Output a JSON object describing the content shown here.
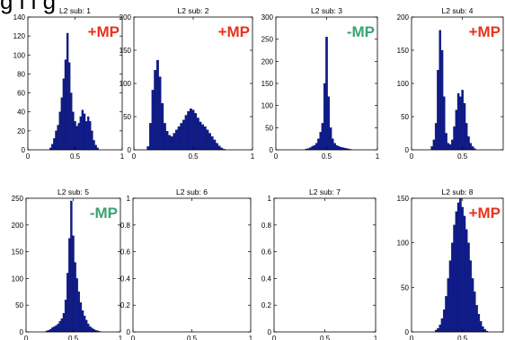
{
  "top_caption": "g   l     l                    g",
  "chart_data": [
    {
      "type": "bar",
      "title": "L2 sub: 1",
      "annotation": "+MP",
      "annotation_color": "#e8331c",
      "xlim": [
        0,
        1
      ],
      "ylim": [
        0,
        140
      ],
      "xticks": [
        0,
        0.5,
        1
      ],
      "yticks": [
        0,
        20,
        40,
        60,
        80,
        100,
        120,
        140
      ],
      "bin_width": 0.02,
      "x": [
        0.24,
        0.26,
        0.28,
        0.3,
        0.32,
        0.34,
        0.36,
        0.38,
        0.4,
        0.42,
        0.44,
        0.46,
        0.48,
        0.5,
        0.52,
        0.54,
        0.56,
        0.58,
        0.6,
        0.62,
        0.64,
        0.66,
        0.68,
        0.7,
        0.72,
        0.74
      ],
      "values": [
        2,
        6,
        12,
        20,
        26,
        40,
        55,
        75,
        95,
        123,
        92,
        60,
        40,
        30,
        25,
        28,
        35,
        42,
        38,
        30,
        35,
        30,
        20,
        10,
        5,
        2
      ]
    },
    {
      "type": "bar",
      "title": "L2 sub: 2",
      "annotation": "+MP",
      "annotation_color": "#e8331c",
      "xlim": [
        0,
        1
      ],
      "ylim": [
        0,
        200
      ],
      "xticks": [
        0,
        0.5,
        1
      ],
      "yticks": [
        0,
        50,
        100,
        150,
        200
      ],
      "bin_width": 0.02,
      "x": [
        0.12,
        0.14,
        0.16,
        0.18,
        0.2,
        0.22,
        0.24,
        0.26,
        0.28,
        0.3,
        0.32,
        0.34,
        0.36,
        0.38,
        0.4,
        0.42,
        0.44,
        0.46,
        0.48,
        0.5,
        0.52,
        0.54,
        0.56,
        0.58,
        0.6,
        0.62,
        0.64,
        0.66,
        0.68,
        0.7,
        0.72,
        0.74,
        0.76
      ],
      "values": [
        5,
        40,
        90,
        120,
        135,
        110,
        70,
        40,
        28,
        22,
        20,
        25,
        30,
        35,
        40,
        45,
        52,
        58,
        62,
        60,
        55,
        48,
        42,
        38,
        35,
        30,
        25,
        20,
        15,
        10,
        6,
        3,
        1
      ]
    },
    {
      "type": "bar",
      "title": "L2 sub: 3",
      "annotation": "-MP",
      "annotation_color": "#3aa374",
      "xlim": [
        0,
        1
      ],
      "ylim": [
        0,
        300
      ],
      "xticks": [
        0,
        0.5,
        1
      ],
      "yticks": [
        0,
        50,
        100,
        150,
        200,
        250,
        300
      ],
      "bin_width": 0.02,
      "x": [
        0.3,
        0.32,
        0.34,
        0.36,
        0.38,
        0.4,
        0.42,
        0.44,
        0.46,
        0.48,
        0.5,
        0.52,
        0.54,
        0.56,
        0.58,
        0.6,
        0.62,
        0.64,
        0.66,
        0.68,
        0.7,
        0.72,
        0.74
      ],
      "values": [
        2,
        3,
        5,
        8,
        10,
        15,
        25,
        40,
        60,
        150,
        255,
        120,
        50,
        25,
        15,
        10,
        8,
        6,
        5,
        4,
        3,
        2,
        1
      ]
    },
    {
      "type": "bar",
      "title": "L2 sub: 4",
      "annotation": "+MP",
      "annotation_color": "#e8331c",
      "xlim": [
        0,
        0.9
      ],
      "ylim": [
        0,
        200
      ],
      "xticks": [
        0,
        0.5
      ],
      "yticks": [
        0,
        50,
        100,
        150,
        200
      ],
      "bin_width": 0.02,
      "x": [
        0.2,
        0.22,
        0.24,
        0.26,
        0.28,
        0.3,
        0.32,
        0.34,
        0.36,
        0.38,
        0.4,
        0.42,
        0.44,
        0.46,
        0.48,
        0.5,
        0.52,
        0.54,
        0.56,
        0.58,
        0.6,
        0.62
      ],
      "values": [
        5,
        15,
        40,
        120,
        180,
        150,
        80,
        25,
        10,
        8,
        15,
        35,
        60,
        85,
        80,
        90,
        70,
        40,
        20,
        10,
        5,
        2
      ]
    },
    {
      "type": "bar",
      "title": "L2 sub: 5",
      "annotation": "-MP",
      "annotation_color": "#3aa374",
      "xlim": [
        0,
        1
      ],
      "ylim": [
        0,
        250
      ],
      "xticks": [
        0,
        0.5,
        1
      ],
      "yticks": [
        0,
        50,
        100,
        150,
        200,
        250
      ],
      "bin_width": 0.02,
      "x": [
        0.22,
        0.24,
        0.26,
        0.28,
        0.3,
        0.32,
        0.34,
        0.36,
        0.38,
        0.4,
        0.42,
        0.44,
        0.46,
        0.48,
        0.5,
        0.52,
        0.54,
        0.56,
        0.58,
        0.6,
        0.62,
        0.64,
        0.66,
        0.68,
        0.7,
        0.72,
        0.74,
        0.76,
        0.78
      ],
      "values": [
        2,
        3,
        5,
        8,
        10,
        12,
        15,
        20,
        25,
        35,
        60,
        110,
        175,
        245,
        180,
        130,
        100,
        75,
        55,
        40,
        30,
        22,
        15,
        10,
        7,
        5,
        3,
        2,
        1
      ]
    },
    {
      "type": "bar",
      "title": "L2 sub: 6",
      "annotation": "",
      "annotation_color": "#e8331c",
      "xlim": [
        0,
        1
      ],
      "ylim": [
        0,
        1
      ],
      "xticks": [
        0,
        0.5,
        1
      ],
      "yticks": [
        0,
        0.2,
        0.4,
        0.6,
        0.8,
        1
      ],
      "bin_width": 0.02,
      "x": [],
      "values": []
    },
    {
      "type": "bar",
      "title": "L2 sub: 7",
      "annotation": "",
      "annotation_color": "#e8331c",
      "xlim": [
        0,
        1
      ],
      "ylim": [
        0,
        1
      ],
      "xticks": [
        0,
        0.5,
        1
      ],
      "yticks": [
        0,
        0.2,
        0.4,
        0.6,
        0.8,
        1
      ],
      "bin_width": 0.02,
      "x": [],
      "values": []
    },
    {
      "type": "bar",
      "title": "L2 sub: 8",
      "annotation": "+MP",
      "annotation_color": "#e8331c",
      "xlim": [
        0,
        0.9
      ],
      "ylim": [
        0,
        150
      ],
      "xticks": [
        0,
        0.5
      ],
      "yticks": [
        0,
        50,
        100,
        150
      ],
      "bin_width": 0.02,
      "x": [
        0.24,
        0.26,
        0.28,
        0.3,
        0.32,
        0.34,
        0.36,
        0.38,
        0.4,
        0.42,
        0.44,
        0.46,
        0.48,
        0.5,
        0.52,
        0.54,
        0.56,
        0.58,
        0.6,
        0.62,
        0.64,
        0.66,
        0.68,
        0.7,
        0.72,
        0.74
      ],
      "values": [
        2,
        4,
        8,
        15,
        25,
        40,
        60,
        80,
        100,
        120,
        135,
        145,
        150,
        140,
        130,
        115,
        100,
        80,
        60,
        45,
        30,
        20,
        12,
        6,
        3,
        1
      ]
    }
  ]
}
